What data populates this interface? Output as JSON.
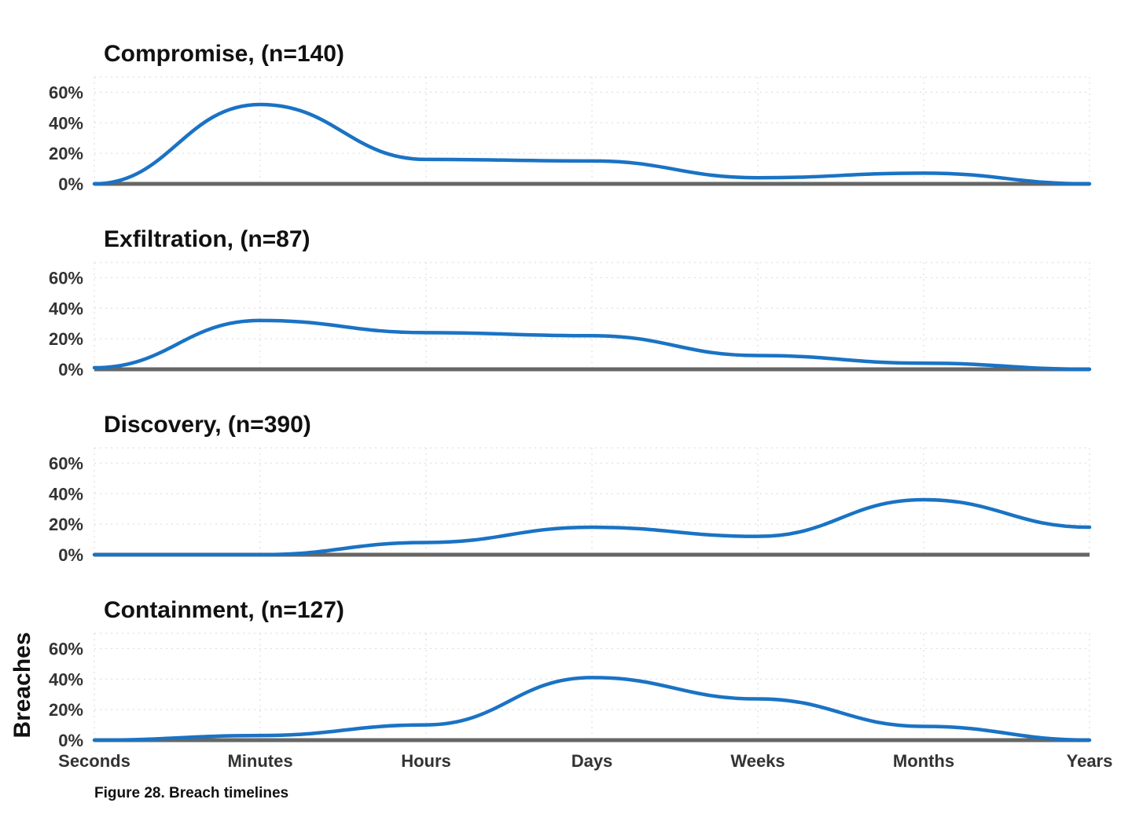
{
  "figure": {
    "caption": "Figure 28. Breach timelines",
    "ylabel": "Breaches"
  },
  "colors": {
    "line": "#1a73c4",
    "baseline": "#666666"
  },
  "chart_data": {
    "type": "line",
    "categories": [
      "Seconds",
      "Minutes",
      "Hours",
      "Days",
      "Weeks",
      "Months",
      "Years"
    ],
    "y_ticks": [
      "0%",
      "20%",
      "40%",
      "60%"
    ],
    "ylim": [
      0,
      0.7
    ],
    "grid": true,
    "panels": [
      {
        "title": "Compromise, (n=140)",
        "values": [
          0.0,
          0.52,
          0.16,
          0.15,
          0.04,
          0.07,
          0.0
        ]
      },
      {
        "title": "Exfiltration, (n=87)",
        "values": [
          0.01,
          0.32,
          0.24,
          0.22,
          0.09,
          0.04,
          0.0
        ]
      },
      {
        "title": "Discovery, (n=390)",
        "values": [
          0.0,
          0.0,
          0.08,
          0.18,
          0.12,
          0.36,
          0.18
        ]
      },
      {
        "title": "Containment, (n=127)",
        "values": [
          0.0,
          0.03,
          0.1,
          0.41,
          0.27,
          0.09,
          0.0
        ]
      }
    ]
  }
}
